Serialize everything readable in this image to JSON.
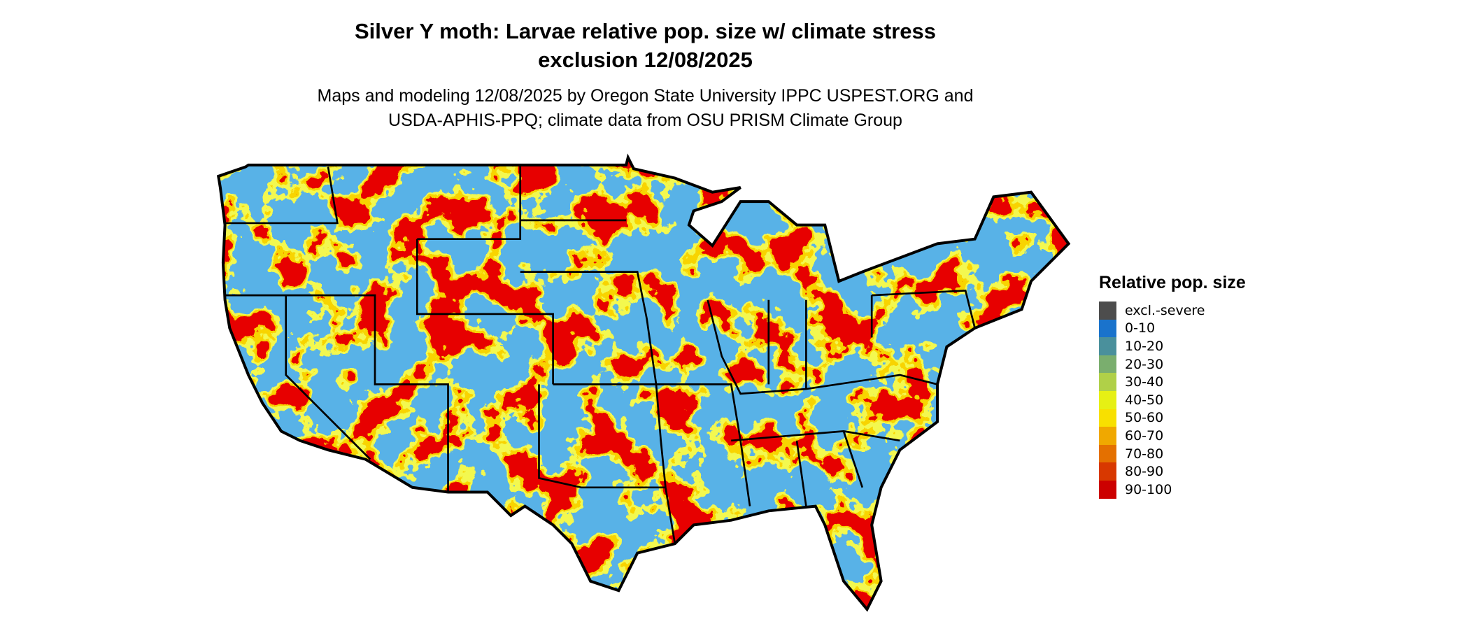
{
  "title_line1": "Silver Y moth: Larvae relative pop. size w/ climate stress",
  "title_line2": "exclusion 12/08/2025",
  "subtitle_line1": "Maps and modeling 12/08/2025 by Oregon State University IPPC USPEST.ORG and",
  "subtitle_line2": "USDA-APHIS-PPQ; climate data from OSU PRISM Climate Group",
  "legend": {
    "title": "Relative pop. size",
    "items": [
      {
        "label": "excl.-severe",
        "color": "#4d4d4d"
      },
      {
        "label": "0-10",
        "color": "#1a73cc"
      },
      {
        "label": "10-20",
        "color": "#4a909c"
      },
      {
        "label": "20-30",
        "color": "#7aae6e"
      },
      {
        "label": "30-40",
        "color": "#b0d048"
      },
      {
        "label": "40-50",
        "color": "#e6f014"
      },
      {
        "label": "50-60",
        "color": "#f8e000"
      },
      {
        "label": "60-70",
        "color": "#f0a800"
      },
      {
        "label": "70-80",
        "color": "#e47000"
      },
      {
        "label": "80-90",
        "color": "#d83800"
      },
      {
        "label": "90-100",
        "color": "#cc0000"
      }
    ]
  }
}
